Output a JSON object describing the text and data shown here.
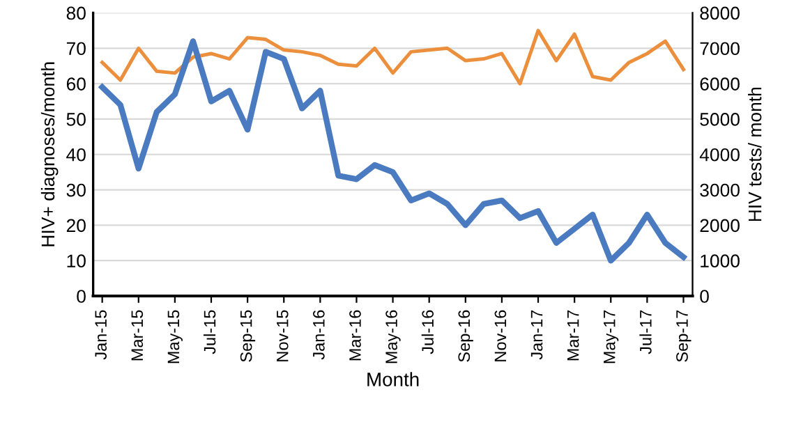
{
  "chart_data": {
    "type": "line",
    "xlabel": "Month",
    "ylabel": "HIV+ diagnoses/month",
    "y2label": "HIV tests/ month",
    "categories": [
      "Jan-15",
      null,
      "Mar-15",
      null,
      "May-15",
      null,
      "Jul-15",
      null,
      "Sep-15",
      null,
      "Nov-15",
      null,
      "Jan-16",
      null,
      "Mar-16",
      null,
      "May-16",
      null,
      "Jul-16",
      null,
      "Sep-16",
      null,
      "Nov-16",
      null,
      "Jan-17",
      null,
      "Mar-17",
      null,
      "May-17",
      null,
      "Jul-17",
      null,
      "Sep-17"
    ],
    "series": [
      {
        "color": "#4a7abf",
        "values": [
          59,
          54,
          36,
          52,
          57,
          72,
          55,
          58,
          47,
          69,
          67,
          53,
          58,
          34,
          33,
          37,
          35,
          27,
          29,
          26,
          20,
          26,
          27,
          22,
          24,
          15,
          19,
          23,
          10,
          15,
          23,
          15,
          11
        ]
      },
      {
        "color": "#ec8f3d",
        "axis": "y2",
        "values": [
          6600,
          6100,
          7000,
          6350,
          6300,
          6750,
          6850,
          6700,
          7300,
          7250,
          6950,
          6900,
          6800,
          6550,
          6500,
          7000,
          6300,
          6900,
          6950,
          7000,
          6650,
          6700,
          6850,
          6000,
          7500,
          6650,
          7400,
          6200,
          6100,
          6600,
          6850,
          7200,
          6400
        ]
      }
    ],
    "ylim": [
      0,
      80
    ],
    "yticks": [
      0,
      10,
      20,
      30,
      40,
      50,
      60,
      70,
      80
    ],
    "y2lim": [
      0,
      8000
    ],
    "y2ticks": [
      0,
      1000,
      2000,
      3000,
      4000,
      5000,
      6000,
      7000,
      8000
    ],
    "grid": "y",
    "marker": "none",
    "line_style": "solid"
  }
}
